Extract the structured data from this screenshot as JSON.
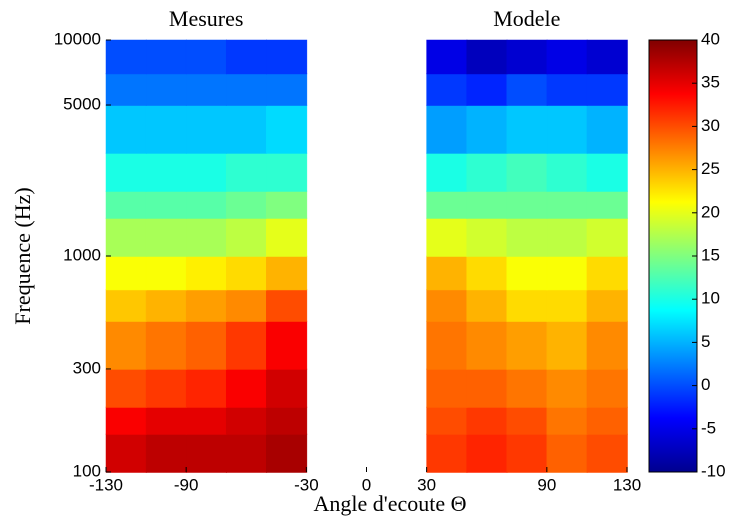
{
  "chart_data": {
    "type": "heatmap",
    "xlabel": "Angle d'ecoute Θ",
    "ylabel": "Frequence (Hz)",
    "xlim": [
      -130,
      130
    ],
    "xticks": [
      -130,
      -90,
      -30,
      0,
      30,
      90,
      130
    ],
    "ylim": [
      100,
      10000
    ],
    "yticks": [
      100,
      300,
      1000,
      5000,
      10000
    ],
    "log_y": true,
    "colormap": "jet",
    "clim": [
      -10,
      40
    ],
    "cticks": [
      -10,
      -5,
      0,
      5,
      10,
      15,
      20,
      25,
      30,
      35,
      40
    ],
    "y_edges": [
      100,
      150,
      200,
      300,
      500,
      700,
      1000,
      1500,
      2000,
      3000,
      5000,
      7000,
      10000
    ],
    "panels": [
      {
        "title": "Mesures",
        "x_edges": [
          -130,
          -110,
          -90,
          -70,
          -50,
          -30
        ],
        "values": [
          [
            36,
            37,
            37,
            37,
            38
          ],
          [
            34,
            35,
            35,
            36,
            37
          ],
          [
            30,
            31,
            32,
            34,
            36
          ],
          [
            27,
            28,
            29,
            31,
            34
          ],
          [
            24,
            25,
            26,
            27,
            30
          ],
          [
            21,
            21,
            22,
            23,
            25
          ],
          [
            17,
            17,
            17,
            18,
            20
          ],
          [
            13,
            13,
            13,
            14,
            15
          ],
          [
            10,
            10,
            10,
            11,
            11
          ],
          [
            6,
            6,
            6,
            6,
            7
          ],
          [
            2,
            2,
            2,
            2,
            2
          ],
          [
            0,
            0,
            0,
            -1,
            -1
          ]
        ]
      },
      {
        "title": "Modele",
        "x_edges": [
          30,
          50,
          70,
          90,
          110,
          130
        ],
        "values": [
          [
            31,
            32,
            31,
            29,
            30
          ],
          [
            30,
            31,
            30,
            28,
            29
          ],
          [
            29,
            29,
            28,
            27,
            28
          ],
          [
            28,
            27,
            26,
            25,
            27
          ],
          [
            27,
            25,
            23,
            23,
            25
          ],
          [
            25,
            23,
            21,
            21,
            23
          ],
          [
            20,
            19,
            18,
            18,
            19
          ],
          [
            14,
            14,
            14,
            14,
            14
          ],
          [
            10,
            11,
            12,
            11,
            10
          ],
          [
            4,
            5,
            6,
            6,
            5
          ],
          [
            -1,
            -2,
            0,
            -1,
            -1
          ],
          [
            -5,
            -7,
            -6,
            -5,
            -6
          ]
        ]
      }
    ]
  }
}
